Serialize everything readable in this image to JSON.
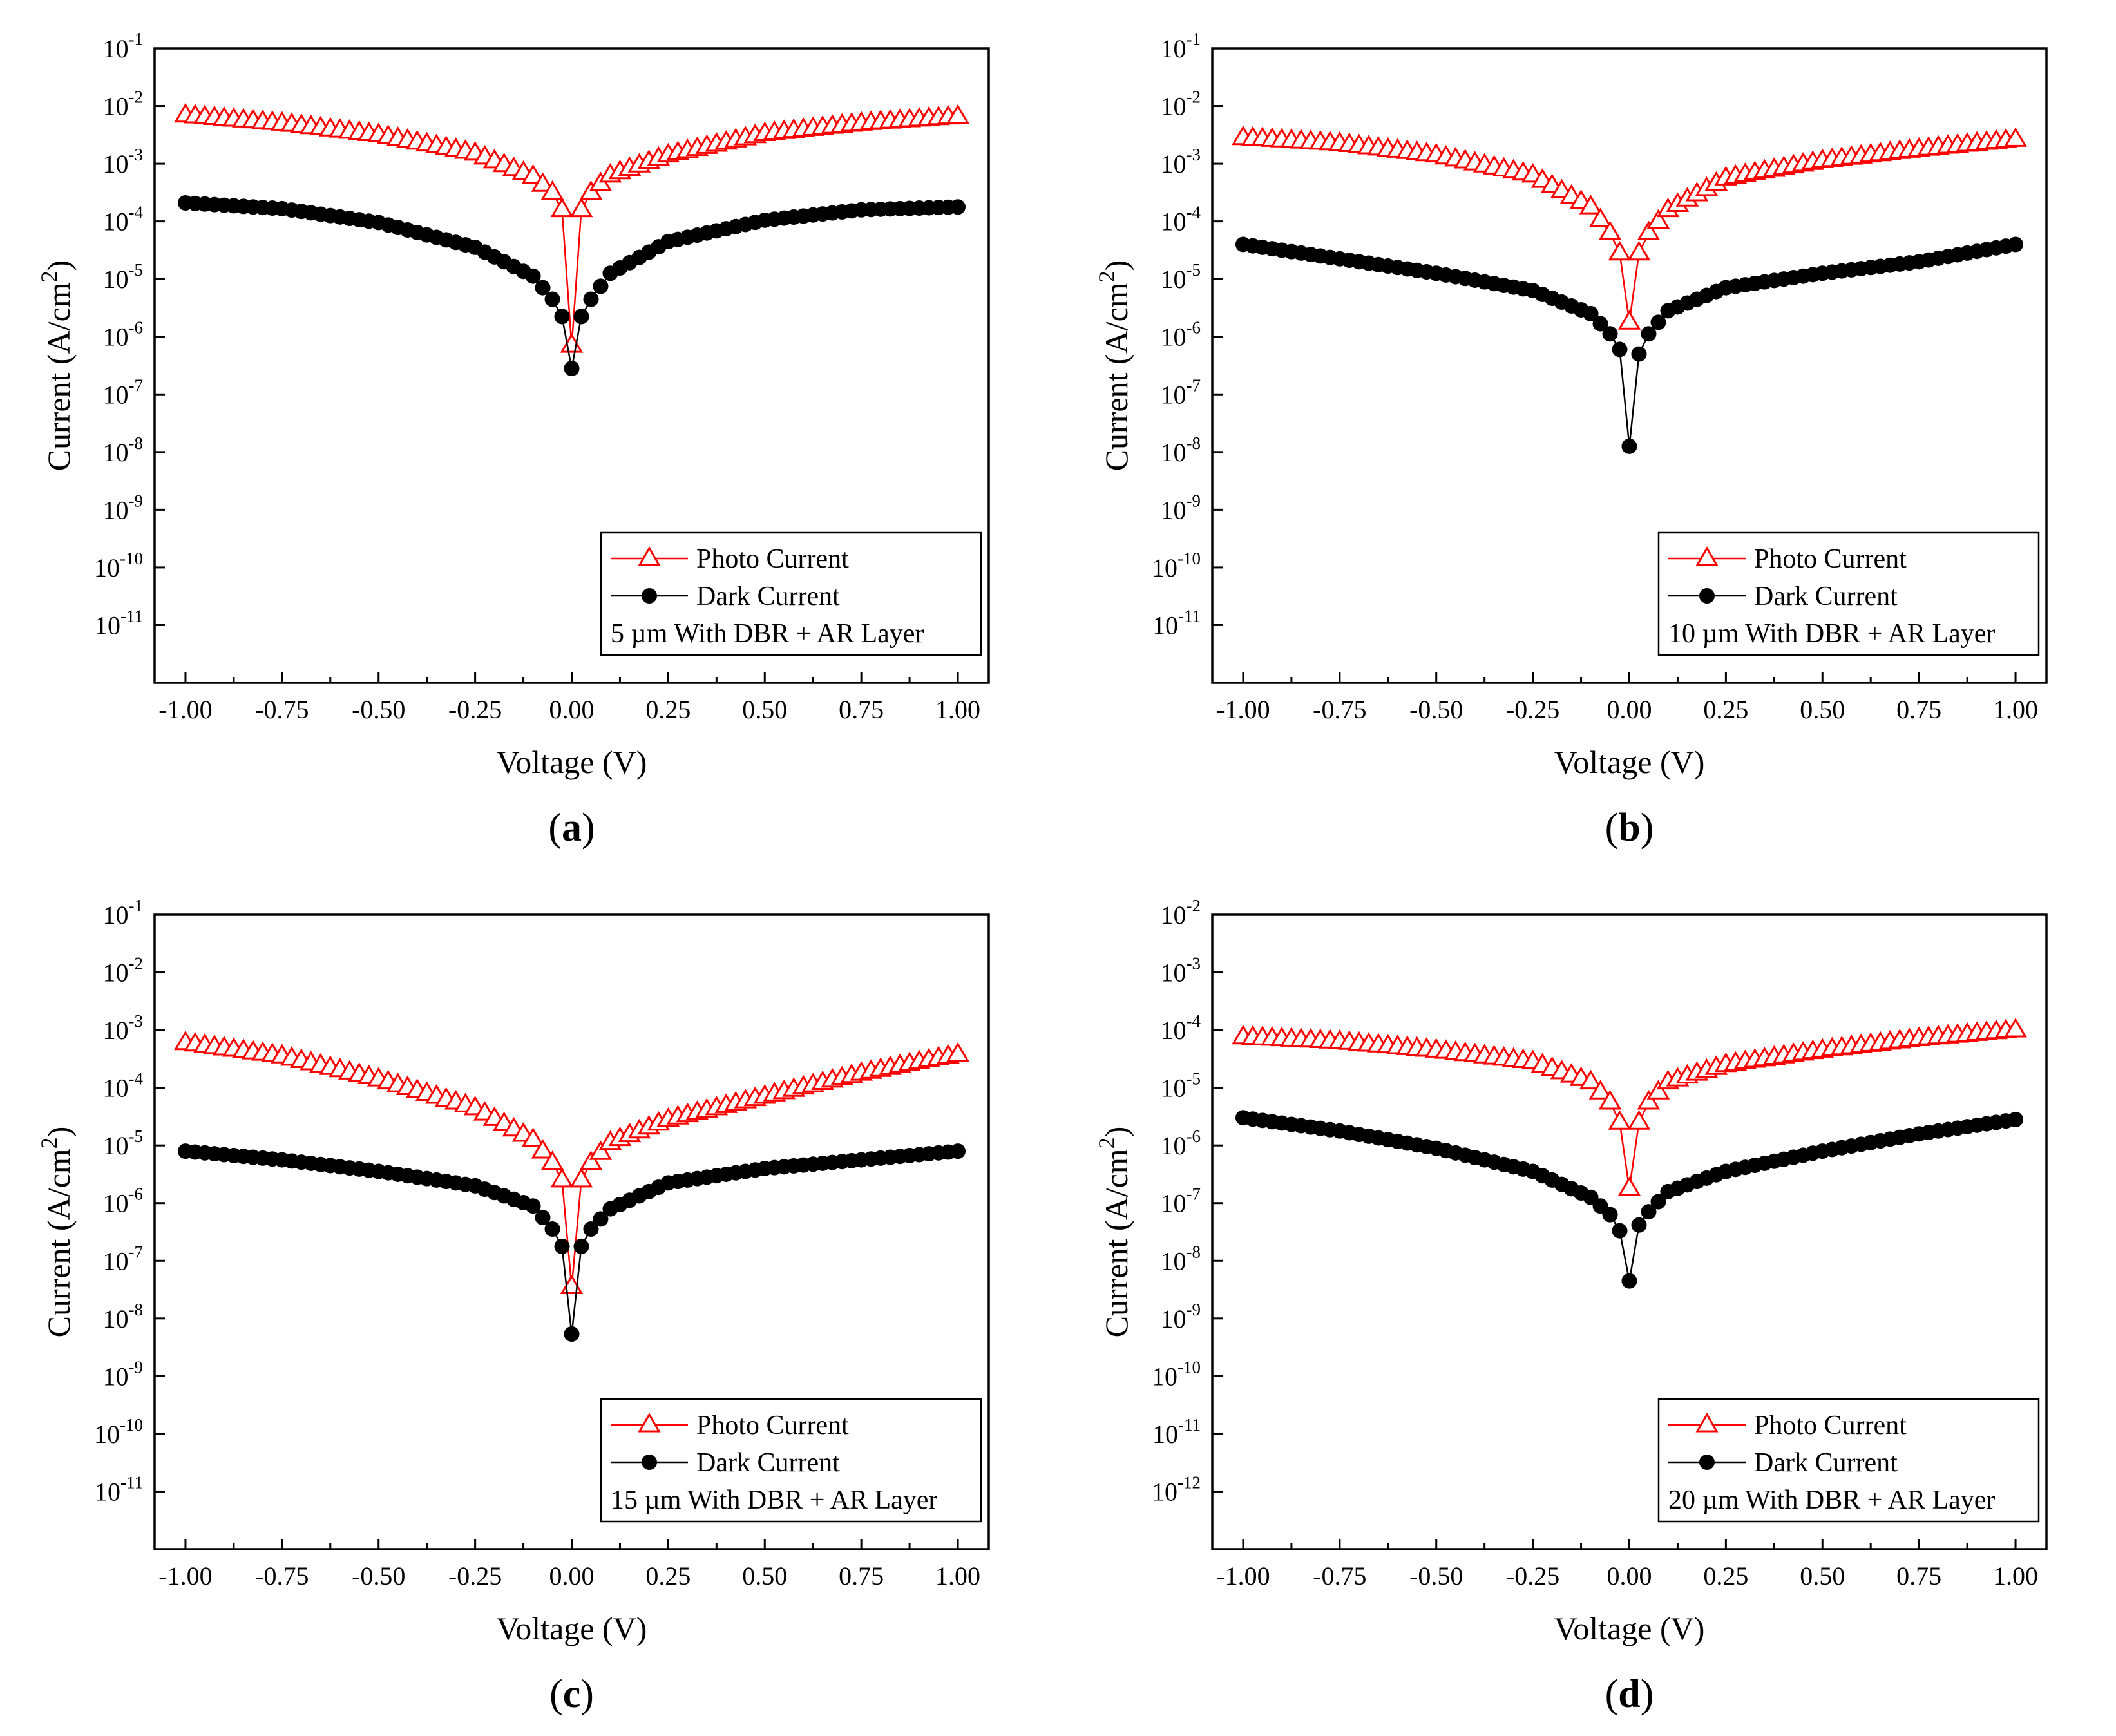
{
  "chart_data": [
    {
      "id": "a",
      "type": "scatter",
      "panel_label": "a",
      "xlabel": "Voltage (V)",
      "ylabel": "Current (A/cm",
      "ylabel_sup": "2",
      "ylabel_close": ")",
      "y_scale": "log",
      "xlim": [
        -1.08,
        1.08
      ],
      "ylim_exp": [
        -12,
        -1
      ],
      "x_ticks": [
        "-1.00",
        "-0.75",
        "-0.50",
        "-0.25",
        "0.00",
        "0.25",
        "0.50",
        "0.75",
        "1.00"
      ],
      "y_tick_exps": [
        "-11",
        "-10",
        "-9",
        "-8",
        "-7",
        "-6",
        "-5",
        "-4",
        "-3",
        "-2",
        "-1"
      ],
      "y_tick_base": "10",
      "legend_position": "bottom-right",
      "legend": [
        "Photo Current",
        "Dark Current"
      ],
      "annotation": "5 µm With DBR + AR Layer",
      "series": [
        {
          "name": "Photo Current",
          "color": "#ff0000",
          "marker": "open-triangle",
          "x": [
            -1.0,
            -0.75,
            -0.5,
            -0.25,
            -0.1,
            -0.05,
            -0.025,
            0.0,
            0.025,
            0.05,
            0.1,
            0.25,
            0.5,
            0.75,
            1.0
          ],
          "y_log10": [
            -2.16,
            -2.3,
            -2.5,
            -2.82,
            -3.22,
            -3.5,
            -3.8,
            -6.15,
            -3.8,
            -3.5,
            -3.2,
            -2.85,
            -2.48,
            -2.3,
            -2.18
          ]
        },
        {
          "name": "Dark Current",
          "color": "#000000",
          "marker": "filled-circle",
          "x": [
            -1.0,
            -0.75,
            -0.5,
            -0.25,
            -0.1,
            -0.05,
            -0.025,
            0.0,
            0.025,
            0.05,
            0.1,
            0.25,
            0.5,
            0.75,
            1.0
          ],
          "y_log10": [
            -3.68,
            -3.78,
            -4.02,
            -4.45,
            -4.95,
            -5.35,
            -5.65,
            -6.55,
            -5.65,
            -5.35,
            -4.9,
            -4.35,
            -3.98,
            -3.8,
            -3.75
          ]
        }
      ]
    },
    {
      "id": "b",
      "type": "scatter",
      "panel_label": "b",
      "xlabel": "Voltage (V)",
      "ylabel": "Current (A/cm",
      "ylabel_sup": "2",
      "ylabel_close": ")",
      "y_scale": "log",
      "xlim": [
        -1.08,
        1.08
      ],
      "ylim_exp": [
        -12,
        -1
      ],
      "x_ticks": [
        "-1.00",
        "-0.75",
        "-0.50",
        "-0.25",
        "0.00",
        "0.25",
        "0.50",
        "0.75",
        "1.00"
      ],
      "y_tick_exps": [
        "-11",
        "-10",
        "-9",
        "-8",
        "-7",
        "-6",
        "-5",
        "-4",
        "-3",
        "-2",
        "-1"
      ],
      "y_tick_base": "10",
      "legend_position": "bottom-right",
      "legend": [
        "Photo Current",
        "Dark Current"
      ],
      "annotation": "10 µm With DBR + AR Layer",
      "series": [
        {
          "name": "Photo Current",
          "color": "#ff0000",
          "marker": "open-triangle",
          "x": [
            -1.0,
            -0.75,
            -0.5,
            -0.25,
            -0.1,
            -0.05,
            -0.025,
            0.0,
            0.025,
            0.05,
            0.1,
            0.25,
            0.5,
            0.75,
            1.0
          ],
          "y_log10": [
            -2.55,
            -2.65,
            -2.85,
            -3.2,
            -3.75,
            -4.2,
            -4.55,
            -5.75,
            -4.55,
            -4.2,
            -3.8,
            -3.25,
            -2.95,
            -2.75,
            -2.58
          ]
        },
        {
          "name": "Dark Current",
          "color": "#000000",
          "marker": "filled-circle",
          "x": [
            -1.0,
            -0.75,
            -0.5,
            -0.25,
            -0.1,
            -0.05,
            -0.025,
            0.0,
            0.025,
            0.05,
            0.1,
            0.25,
            0.5,
            0.75,
            1.0
          ],
          "y_log10": [
            -4.4,
            -4.65,
            -4.9,
            -5.2,
            -5.6,
            -5.95,
            -6.22,
            -7.9,
            -6.3,
            -5.95,
            -5.55,
            -5.15,
            -4.9,
            -4.7,
            -4.4
          ]
        }
      ]
    },
    {
      "id": "c",
      "type": "scatter",
      "panel_label": "c",
      "xlabel": "Voltage (V)",
      "ylabel": "Current (A/cm",
      "ylabel_sup": "2",
      "ylabel_close": ")",
      "y_scale": "log",
      "xlim": [
        -1.08,
        1.08
      ],
      "ylim_exp": [
        -12,
        -1
      ],
      "x_ticks": [
        "-1.00",
        "-0.75",
        "-0.50",
        "-0.25",
        "0.00",
        "0.25",
        "0.50",
        "0.75",
        "1.00"
      ],
      "y_tick_exps": [
        "-11",
        "-10",
        "-9",
        "-8",
        "-7",
        "-6",
        "-5",
        "-4",
        "-3",
        "-2",
        "-1"
      ],
      "y_tick_base": "10",
      "legend_position": "bottom-right",
      "legend": [
        "Photo Current",
        "Dark Current"
      ],
      "annotation": "15 µm With DBR + AR Layer",
      "series": [
        {
          "name": "Photo Current",
          "color": "#ff0000",
          "marker": "open-triangle",
          "x": [
            -1.0,
            -0.75,
            -0.5,
            -0.25,
            -0.1,
            -0.05,
            -0.025,
            0.0,
            0.025,
            0.05,
            0.1,
            0.25,
            0.5,
            0.75,
            1.0
          ],
          "y_log10": [
            -3.22,
            -3.45,
            -3.85,
            -4.35,
            -4.9,
            -5.3,
            -5.6,
            -7.45,
            -5.6,
            -5.3,
            -4.95,
            -4.55,
            -4.15,
            -3.75,
            -3.42
          ]
        },
        {
          "name": "Dark Current",
          "color": "#000000",
          "marker": "filled-circle",
          "x": [
            -1.0,
            -0.75,
            -0.5,
            -0.25,
            -0.1,
            -0.05,
            -0.025,
            0.0,
            0.025,
            0.05,
            0.1,
            0.25,
            0.5,
            0.75,
            1.0
          ],
          "y_log10": [
            -5.1,
            -5.25,
            -5.45,
            -5.7,
            -6.05,
            -6.45,
            -6.75,
            -8.27,
            -6.75,
            -6.45,
            -6.1,
            -5.65,
            -5.4,
            -5.25,
            -5.1
          ]
        }
      ]
    },
    {
      "id": "d",
      "type": "scatter",
      "panel_label": "d",
      "xlabel": "Voltage (V)",
      "ylabel": "Current (A/cm",
      "ylabel_sup": "2",
      "ylabel_close": ")",
      "y_scale": "log",
      "xlim": [
        -1.08,
        1.08
      ],
      "ylim_exp": [
        -13,
        -2
      ],
      "x_ticks": [
        "-1.00",
        "-0.75",
        "-0.50",
        "-0.25",
        "0.00",
        "0.25",
        "0.50",
        "0.75",
        "1.00"
      ],
      "y_tick_exps": [
        "-12",
        "-11",
        "-10",
        "-9",
        "-8",
        "-7",
        "-6",
        "-5",
        "-4",
        "-3",
        "-2"
      ],
      "y_tick_base": "10",
      "legend_position": "bottom-right",
      "legend": [
        "Photo Current",
        "Dark Current"
      ],
      "annotation": "20 µm With DBR + AR Layer",
      "series": [
        {
          "name": "Photo Current",
          "color": "#ff0000",
          "marker": "open-triangle",
          "x": [
            -1.0,
            -0.75,
            -0.5,
            -0.25,
            -0.1,
            -0.05,
            -0.025,
            0.0,
            0.025,
            0.05,
            0.1,
            0.25,
            0.5,
            0.75,
            1.0
          ],
          "y_log10": [
            -4.12,
            -4.2,
            -4.35,
            -4.55,
            -4.9,
            -5.25,
            -5.6,
            -6.75,
            -5.6,
            -5.25,
            -4.9,
            -4.6,
            -4.35,
            -4.15,
            -4.0
          ]
        },
        {
          "name": "Dark Current",
          "color": "#000000",
          "marker": "filled-circle",
          "x": [
            -1.0,
            -0.75,
            -0.5,
            -0.25,
            -0.1,
            -0.05,
            -0.025,
            0.0,
            0.025,
            0.05,
            0.1,
            0.25,
            0.5,
            0.75,
            1.0
          ],
          "y_log10": [
            -5.52,
            -5.75,
            -6.05,
            -6.45,
            -6.9,
            -7.2,
            -7.48,
            -8.35,
            -7.38,
            -7.15,
            -6.8,
            -6.45,
            -6.1,
            -5.8,
            -5.55
          ]
        }
      ]
    }
  ]
}
